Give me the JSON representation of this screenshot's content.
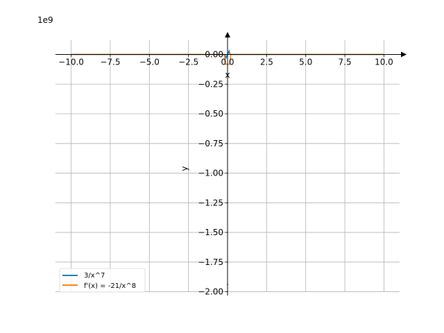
{
  "chart_data": {
    "type": "line",
    "title": "",
    "xlabel": "x",
    "ylabel": "y",
    "offset_text": "1e9",
    "xlim": [
      -11,
      11
    ],
    "ylim": [
      -2.02,
      0.12
    ],
    "y_scale_factor": 1000000000,
    "x_ticks": [
      -10,
      -7.5,
      -5,
      -2.5,
      0,
      2.5,
      5,
      7.5,
      10
    ],
    "x_tick_labels": [
      "−10.0",
      "−7.5",
      "−5.0",
      "−2.5",
      "0.0",
      "2.5",
      "5.0",
      "7.5",
      "10.0"
    ],
    "y_ticks": [
      0,
      -0.25,
      -0.5,
      -0.75,
      -1.0,
      -1.25,
      -1.5,
      -1.75,
      -2.0
    ],
    "y_tick_labels": [
      "0.00",
      "−0.25",
      "−0.50",
      "−0.75",
      "−1.00",
      "−1.25",
      "−1.50",
      "−1.75",
      "−2.00"
    ],
    "grid": true,
    "legend_position": "lower-left",
    "series": [
      {
        "name": "3/x^7",
        "color": "#1f77b4",
        "function": "3/x^7"
      },
      {
        "name": "f'(x) = -21/x^8",
        "color": "#ff7f0e",
        "function": "-21/x^8"
      }
    ]
  }
}
